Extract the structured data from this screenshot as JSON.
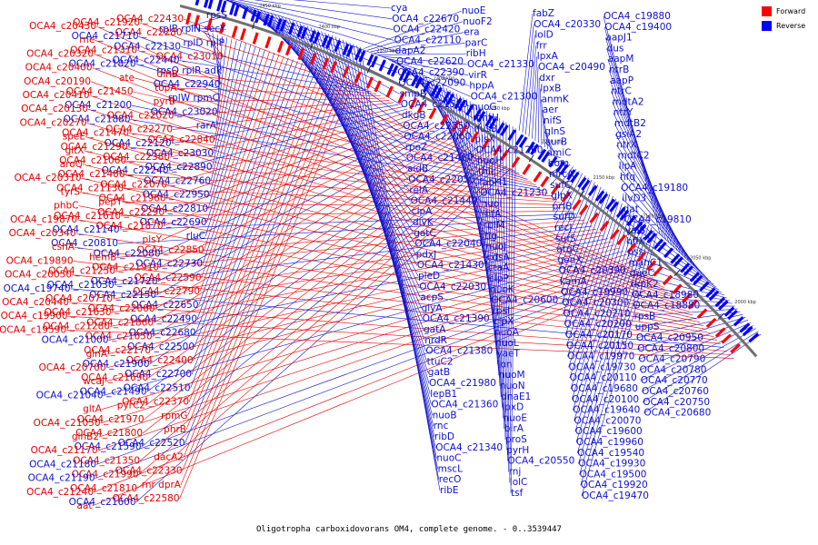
{
  "caption": "Oligotropha carboxidovorans OM4, complete genome. - 0..3539447",
  "legend": [
    {
      "label": "Forward",
      "color": "#ff0000"
    },
    {
      "label": "Reverse",
      "color": "#0000ff"
    }
  ],
  "colors": {
    "forward": "#e00000",
    "reverse": "#1010d0",
    "backbone": "#707070"
  },
  "tick_labels": [
    "2450 kbp",
    "2400 kbp",
    "2350 kbp",
    "2300 kbp",
    "2250 kbp",
    "2200 kbp",
    "2150 kbp",
    "2100 kbp",
    "2050 kbp",
    "2000 kbp"
  ],
  "left_labels": [
    {
      "t": "rpsS",
      "s": "r"
    },
    {
      "t": "rplB rplN secY",
      "s": "r"
    },
    {
      "t": "rplD rplP",
      "s": "r"
    },
    {
      "t": "OCA4_c23010",
      "s": "f"
    },
    {
      "t": "rpsQ rplR adk",
      "s": "r"
    },
    {
      "t": "OCA4_c22940",
      "s": "r"
    },
    {
      "t": "rplW rpmC",
      "s": "r"
    },
    {
      "t": "OCA4_c23020",
      "s": "r"
    },
    {
      "t": "rarA",
      "s": "r"
    },
    {
      "t": "OCA4_c22840",
      "s": "f"
    },
    {
      "t": "OCA4_c23030",
      "s": "r"
    },
    {
      "t": "OCA4_c22890",
      "s": "r"
    },
    {
      "t": "OCA4_c22760",
      "s": "r"
    },
    {
      "t": "OCA4_c22950",
      "s": "r"
    },
    {
      "t": "OCA4_c22810",
      "s": "r"
    },
    {
      "t": "OCA4_c22690",
      "s": "r"
    },
    {
      "t": "rluC",
      "s": "r"
    },
    {
      "t": "OCA4_c22850",
      "s": "f"
    },
    {
      "t": "OCA4_c22730",
      "s": "r"
    },
    {
      "t": "OCA4_c22590",
      "s": "f"
    },
    {
      "t": "OCA4_c22790",
      "s": "f"
    },
    {
      "t": "OCA4_c22650",
      "s": "r"
    },
    {
      "t": "OCA4_c22490",
      "s": "r"
    },
    {
      "t": "OCA4_c22680",
      "s": "r"
    },
    {
      "t": "OCA4_c22500",
      "s": "r"
    },
    {
      "t": "OCA4_c22400",
      "s": "f"
    },
    {
      "t": "OCA4_c22700",
      "s": "r"
    },
    {
      "t": "OCA4_c22510",
      "s": "r"
    },
    {
      "t": "OCA4_c22370",
      "s": "f"
    },
    {
      "t": "rpmG",
      "s": "f"
    },
    {
      "t": "phrB",
      "s": "f"
    },
    {
      "t": "OCA4_c22520",
      "s": "r"
    },
    {
      "t": "dacA2",
      "s": "f"
    },
    {
      "t": "OCA4_c22330",
      "s": "f"
    },
    {
      "t": "rnr dprA",
      "s": "f"
    },
    {
      "t": "OCA4_c22580",
      "s": "f"
    },
    {
      "t": "OCA4_c22430",
      "s": "f"
    },
    {
      "t": "OCA4_c22280",
      "s": "f"
    },
    {
      "t": "OCA4_c22130",
      "s": "r"
    },
    {
      "t": "OCA4_c22440",
      "s": "r"
    },
    {
      "t": "dinB",
      "s": "f"
    },
    {
      "t": "topA",
      "s": "f"
    },
    {
      "t": "pyrB",
      "s": "f"
    },
    {
      "t": "OCA4_c22020",
      "s": "f"
    },
    {
      "t": "OCA4_c22270",
      "s": "f"
    },
    {
      "t": "OCA4_c22120",
      "s": "r"
    },
    {
      "t": "OCA4_c22380",
      "s": "f"
    },
    {
      "t": "OCA4_c22240",
      "s": "r"
    },
    {
      "t": "OCA4_c22070",
      "s": "f"
    },
    {
      "t": "OCA4_c21960",
      "s": "f"
    },
    {
      "t": "OCA4_c22290",
      "s": "f"
    },
    {
      "t": "OCA4_c21870",
      "s": "f"
    },
    {
      "t": "plsY",
      "s": "f"
    },
    {
      "t": "OCA4_c22080",
      "s": "r"
    },
    {
      "t": "OCA4_c21910",
      "s": "f"
    },
    {
      "t": "OCA4_c21720",
      "s": "r"
    },
    {
      "t": "OCA4_c22150",
      "s": "r"
    },
    {
      "t": "OCA4_c22000",
      "s": "f"
    },
    {
      "t": "OCA4_c21860",
      "s": "f"
    },
    {
      "t": "OCA4_c21650",
      "s": "f"
    },
    {
      "t": "OCA4_c22170",
      "s": "f"
    },
    {
      "t": "OCA4_c21900",
      "s": "r"
    },
    {
      "t": "OCA4_c21690",
      "s": "f"
    },
    {
      "t": "OCA4_c21490",
      "s": "r"
    },
    {
      "t": "pyrC2",
      "s": "f"
    },
    {
      "t": "OCA4_c21970",
      "s": "f"
    },
    {
      "t": "OCA4_c21800",
      "s": "f"
    },
    {
      "t": "OCA4_c21590",
      "s": "r"
    },
    {
      "t": "OCA4_c21350",
      "s": "f"
    },
    {
      "t": "OCA4_c21990",
      "s": "f"
    },
    {
      "t": "OCA4_c21810",
      "s": "f"
    },
    {
      "t": "OCA4_c21600",
      "s": "r"
    },
    {
      "t": "OCA4_c21920",
      "s": "f"
    },
    {
      "t": "OCA4_c21710",
      "s": "r"
    },
    {
      "t": "OCA4_c21310",
      "s": "f"
    },
    {
      "t": "OCA4_c21820",
      "s": "r"
    },
    {
      "t": "ate",
      "s": "f"
    },
    {
      "t": "OCA4_c21450",
      "s": "f"
    },
    {
      "t": "OCA4_c21200",
      "s": "r"
    },
    {
      "t": "OCA4_c21880",
      "s": "r"
    },
    {
      "t": "OCA4_c21470",
      "s": "f"
    },
    {
      "t": "OCA4_c21290",
      "s": "f"
    },
    {
      "t": "OCA4_c21060",
      "s": "f"
    },
    {
      "t": "OCA4_c21480",
      "s": "f"
    },
    {
      "t": "OCA4_c21130",
      "s": "f"
    },
    {
      "t": "pepT",
      "s": "f"
    },
    {
      "t": "OCA4_c21610",
      "s": "f"
    },
    {
      "t": "OCA4_c21140",
      "s": "r"
    },
    {
      "t": "OCA4_c20810",
      "s": "r"
    },
    {
      "t": "hemB",
      "s": "f"
    },
    {
      "t": "OCA4_c21250",
      "s": "f"
    },
    {
      "t": "OCA4_c21030",
      "s": "r"
    },
    {
      "t": "OCA4_c20710",
      "s": "f"
    },
    {
      "t": "OCA4_c21630",
      "s": "f"
    },
    {
      "t": "OCA4_c21280",
      "s": "f"
    },
    {
      "t": "OCA4_c21000",
      "s": "r"
    },
    {
      "t": "glnA",
      "s": "f"
    },
    {
      "t": "OCA4_c20700",
      "s": "f"
    },
    {
      "t": "wcaJ",
      "s": "f"
    },
    {
      "t": "OCA4_c21040",
      "s": "r"
    },
    {
      "t": "gltA",
      "s": "f"
    },
    {
      "t": "OCA4_c21050",
      "s": "f"
    },
    {
      "t": "glnB2",
      "s": "f"
    },
    {
      "t": "OCA4_c21170",
      "s": "f"
    },
    {
      "t": "OCA4_c21180",
      "s": "r"
    },
    {
      "t": "OCA4_c21190",
      "s": "r"
    },
    {
      "t": "OCA4_c21240",
      "s": "f"
    },
    {
      "t": "aat",
      "s": "f"
    },
    {
      "t": "OCA4_c20430",
      "s": "f"
    },
    {
      "t": "rne",
      "s": "f"
    },
    {
      "t": "OCA4_c20320",
      "s": "f"
    },
    {
      "t": "OCA4_c20400",
      "s": "f"
    },
    {
      "t": "OCA4_c20190",
      "s": "f"
    },
    {
      "t": "OCA4_c20410",
      "s": "f"
    },
    {
      "t": "OCA4_c20130",
      "s": "f"
    },
    {
      "t": "OCA4_c20270",
      "s": "f"
    },
    {
      "t": "speE",
      "s": "f"
    },
    {
      "t": "gltX",
      "s": "f"
    },
    {
      "t": "aroQ",
      "s": "f"
    },
    {
      "t": "OCA4_c20310",
      "s": "f"
    },
    {
      "t": "tyrS",
      "s": "f"
    },
    {
      "t": "phbC",
      "s": "f"
    },
    {
      "t": "OCA4_c19870",
      "s": "f"
    },
    {
      "t": "OCA4_c20340",
      "s": "f"
    },
    {
      "t": "cshA",
      "s": "f"
    },
    {
      "t": "OCA4_c19890",
      "s": "f"
    },
    {
      "t": "OCA4_c20050",
      "s": "f"
    },
    {
      "t": "OCA4_c19740",
      "s": "r"
    },
    {
      "t": "OCA4_c20440",
      "s": "f"
    },
    {
      "t": "OCA4_c19900",
      "s": "f"
    },
    {
      "t": "OCA4_c19590",
      "s": "f"
    }
  ],
  "right_labels": [
    {
      "t": "cya",
      "s": "r"
    },
    {
      "t": "OCA4_c22670",
      "s": "r"
    },
    {
      "t": "OCA4_c22420",
      "s": "r"
    },
    {
      "t": "OCA4_c22110",
      "s": "r"
    },
    {
      "t": "dapA2",
      "s": "r"
    },
    {
      "t": "OCA4_c22620",
      "s": "r"
    },
    {
      "t": "OCA4_c22390",
      "s": "r"
    },
    {
      "t": "OCA4_c22090",
      "s": "r"
    },
    {
      "t": "smpB",
      "s": "r"
    },
    {
      "t": "OCA4_c21580",
      "s": "r"
    },
    {
      "t": "dkgB",
      "s": "r"
    },
    {
      "t": "OCA4_c22350",
      "s": "r"
    },
    {
      "t": "OCA4_c22060",
      "s": "r"
    },
    {
      "t": "rpoZ",
      "s": "r"
    },
    {
      "t": "OCA4_c21460",
      "s": "r"
    },
    {
      "t": "aidB",
      "s": "r"
    },
    {
      "t": "OCA4_c22050",
      "s": "r"
    },
    {
      "t": "relA",
      "s": "r"
    },
    {
      "t": "OCA4_c21440",
      "s": "r"
    },
    {
      "t": "clpA",
      "s": "r"
    },
    {
      "t": "divK",
      "s": "r"
    },
    {
      "t": "gatC",
      "s": "r"
    },
    {
      "t": "OCA4_c22040",
      "s": "r"
    },
    {
      "t": "pdxJ",
      "s": "r"
    },
    {
      "t": "OCA4_c21430",
      "s": "r"
    },
    {
      "t": "pleD",
      "s": "r"
    },
    {
      "t": "OCA4_c22030",
      "s": "r"
    },
    {
      "t": "acpS",
      "s": "r"
    },
    {
      "t": "glyA",
      "s": "r"
    },
    {
      "t": "OCA4_c21390",
      "s": "r"
    },
    {
      "t": "gatA",
      "s": "r"
    },
    {
      "t": "nrdR",
      "s": "r"
    },
    {
      "t": "OCA4_c21380",
      "s": "r"
    },
    {
      "t": "ttuC2",
      "s": "r"
    },
    {
      "t": "gatB",
      "s": "r"
    },
    {
      "t": "OCA4_c21980",
      "s": "r"
    },
    {
      "t": "lepB1",
      "s": "r"
    },
    {
      "t": "OCA4_c21360",
      "s": "r"
    },
    {
      "t": "nuoB",
      "s": "r"
    },
    {
      "t": "rnc",
      "s": "r"
    },
    {
      "t": "ribD",
      "s": "r"
    },
    {
      "t": "OCA4_c21340",
      "s": "r"
    },
    {
      "t": "nuoC",
      "s": "r"
    },
    {
      "t": "mscL",
      "s": "r"
    },
    {
      "t": "recO",
      "s": "r"
    },
    {
      "t": "ribE",
      "s": "r"
    },
    {
      "t": "nuoE",
      "s": "r"
    },
    {
      "t": "nuoF2",
      "s": "r"
    },
    {
      "t": "era",
      "s": "r"
    },
    {
      "t": "parC",
      "s": "r"
    },
    {
      "t": "ribH",
      "s": "r"
    },
    {
      "t": "OCA4_c21330",
      "s": "r"
    },
    {
      "t": "virR",
      "s": "r"
    },
    {
      "t": "hppA",
      "s": "r"
    },
    {
      "t": "OCA4_c21300",
      "s": "r"
    },
    {
      "t": "nuoG",
      "s": "r"
    },
    {
      "t": "mntH",
      "s": "r"
    },
    {
      "t": "nusB",
      "s": "r"
    },
    {
      "t": "plsX",
      "s": "r"
    },
    {
      "t": "OCA4_c21260",
      "s": "r"
    },
    {
      "t": "nuoH",
      "s": "r"
    },
    {
      "t": "thiL",
      "s": "r"
    },
    {
      "t": "fabH1",
      "s": "r"
    },
    {
      "t": "OCA4_c21230",
      "s": "r"
    },
    {
      "t": "nuoI",
      "s": "r"
    },
    {
      "t": "ihfA",
      "s": "r"
    },
    {
      "t": "rplM",
      "s": "r"
    },
    {
      "t": "tig",
      "s": "r"
    },
    {
      "t": "nuoJ",
      "s": "r"
    },
    {
      "t": "cdsA",
      "s": "r"
    },
    {
      "t": "ctaA",
      "s": "r"
    },
    {
      "t": "clpP",
      "s": "r"
    },
    {
      "t": "nuoK",
      "s": "r"
    },
    {
      "t": "OCA4_c20600",
      "s": "r"
    },
    {
      "t": "rpsI",
      "s": "r"
    },
    {
      "t": "clpX",
      "s": "r"
    },
    {
      "t": "nuoA",
      "s": "r"
    },
    {
      "t": "nuoL",
      "s": "r"
    },
    {
      "t": "yaeT",
      "s": "r"
    },
    {
      "t": "lon",
      "s": "r"
    },
    {
      "t": "nuoM",
      "s": "r"
    },
    {
      "t": "nuoN",
      "s": "r"
    },
    {
      "t": "dnaE1",
      "s": "r"
    },
    {
      "t": "lpxD",
      "s": "r"
    },
    {
      "t": "nuoE",
      "s": "r"
    },
    {
      "t": "birA",
      "s": "r"
    },
    {
      "t": "proS",
      "s": "r"
    },
    {
      "t": "pyrH",
      "s": "r"
    },
    {
      "t": "OCA4_c20550",
      "s": "r"
    },
    {
      "t": "rnj",
      "s": "r"
    },
    {
      "t": "lolC",
      "s": "r"
    },
    {
      "t": "tsf",
      "s": "r"
    },
    {
      "t": "fabZ",
      "s": "r"
    },
    {
      "t": "OCA4_c20330",
      "s": "r"
    },
    {
      "t": "lolD",
      "s": "r"
    },
    {
      "t": "frr",
      "s": "r"
    },
    {
      "t": "lpxA",
      "s": "r"
    },
    {
      "t": "OCA4_c20490",
      "s": "r"
    },
    {
      "t": "dxr",
      "s": "r"
    },
    {
      "t": "lpxB",
      "s": "r"
    },
    {
      "t": "anmK",
      "s": "r"
    },
    {
      "t": "aer",
      "s": "r"
    },
    {
      "t": "nifS",
      "s": "r"
    },
    {
      "t": "glnS",
      "s": "r"
    },
    {
      "t": "surB",
      "s": "r"
    },
    {
      "t": "amiC",
      "s": "r"
    },
    {
      "t": "hom",
      "s": "r"
    },
    {
      "t": "mrcA",
      "s": "r"
    },
    {
      "t": "sufC",
      "s": "r"
    },
    {
      "t": "glpX",
      "s": "r"
    },
    {
      "t": "prfB",
      "s": "r"
    },
    {
      "t": "sufD",
      "s": "r"
    },
    {
      "t": "recJ",
      "s": "r"
    },
    {
      "t": "sufS",
      "s": "r"
    },
    {
      "t": "argC",
      "s": "r"
    },
    {
      "t": "genX",
      "s": "r"
    },
    {
      "t": "OCA4_c20390",
      "s": "r"
    },
    {
      "t": "kamA",
      "s": "r"
    },
    {
      "t": "OCA4_c19990",
      "s": "r"
    },
    {
      "t": "OCA4_c20300",
      "s": "r"
    },
    {
      "t": "OCA4_c20210",
      "s": "r"
    },
    {
      "t": "OCA4_c20200",
      "s": "r"
    },
    {
      "t": "OCA4_c20170",
      "s": "r"
    },
    {
      "t": "OCA4_c20150",
      "s": "r"
    },
    {
      "t": "OCA4_c19970",
      "s": "r"
    },
    {
      "t": "OCA4_c19730",
      "s": "r"
    },
    {
      "t": "OCA4_c20110",
      "s": "r"
    },
    {
      "t": "OCA4_c19680",
      "s": "r"
    },
    {
      "t": "OCA4_c20100",
      "s": "r"
    },
    {
      "t": "OCA4_c19640",
      "s": "r"
    },
    {
      "t": "OCA4_c20070",
      "s": "r"
    },
    {
      "t": "OCA4_c19600",
      "s": "r"
    },
    {
      "t": "OCA4_c19960",
      "s": "r"
    },
    {
      "t": "OCA4_c19540",
      "s": "r"
    },
    {
      "t": "OCA4_c19930",
      "s": "r"
    },
    {
      "t": "OCA4_c19500",
      "s": "r"
    },
    {
      "t": "OCA4_c19920",
      "s": "r"
    },
    {
      "t": "OCA4_c19470",
      "s": "r"
    },
    {
      "t": "OCA4_c19880",
      "s": "r"
    },
    {
      "t": "OCA4_c19400",
      "s": "r"
    },
    {
      "t": "aapJ1",
      "s": "r"
    },
    {
      "t": "dus",
      "s": "r"
    },
    {
      "t": "aapM",
      "s": "r"
    },
    {
      "t": "ntrB",
      "s": "r"
    },
    {
      "t": "aapP",
      "s": "r"
    },
    {
      "t": "ntrC",
      "s": "r"
    },
    {
      "t": "mdtA2",
      "s": "r"
    },
    {
      "t": "ntrY",
      "s": "r"
    },
    {
      "t": "mdtB2",
      "s": "r"
    },
    {
      "t": "gsiA2",
      "s": "r"
    },
    {
      "t": "ntrX",
      "s": "r"
    },
    {
      "t": "mdtC2",
      "s": "r"
    },
    {
      "t": "lipA",
      "s": "r"
    },
    {
      "t": "hfq",
      "s": "r"
    },
    {
      "t": "OCA4_c19180",
      "s": "r"
    },
    {
      "t": "ilvD3",
      "s": "r"
    },
    {
      "t": "dat",
      "s": "r"
    },
    {
      "t": "OCA4_c19810",
      "s": "r"
    },
    {
      "t": "valS",
      "s": "r"
    },
    {
      "t": "hflX",
      "s": "r"
    },
    {
      "t": "pss",
      "s": "r"
    },
    {
      "t": "manC1",
      "s": "r"
    },
    {
      "t": "queC",
      "s": "r"
    },
    {
      "t": "rkpK2",
      "s": "r"
    },
    {
      "t": "OCA4_c18980",
      "s": "r"
    },
    {
      "t": "OCA4_c18880",
      "s": "r"
    },
    {
      "t": "rpsB",
      "s": "r"
    },
    {
      "t": "uppS",
      "s": "r"
    },
    {
      "t": "OCA4_c20950",
      "s": "r"
    },
    {
      "t": "OCA4_c20800",
      "s": "r"
    },
    {
      "t": "OCA4_c20790",
      "s": "r"
    },
    {
      "t": "OCA4_c20780",
      "s": "r"
    },
    {
      "t": "OCA4_c20770",
      "s": "r"
    },
    {
      "t": "OCA4_c20760",
      "s": "r"
    },
    {
      "t": "OCA4_c20750",
      "s": "r"
    },
    {
      "t": "OCA4_c20680",
      "s": "r"
    }
  ]
}
